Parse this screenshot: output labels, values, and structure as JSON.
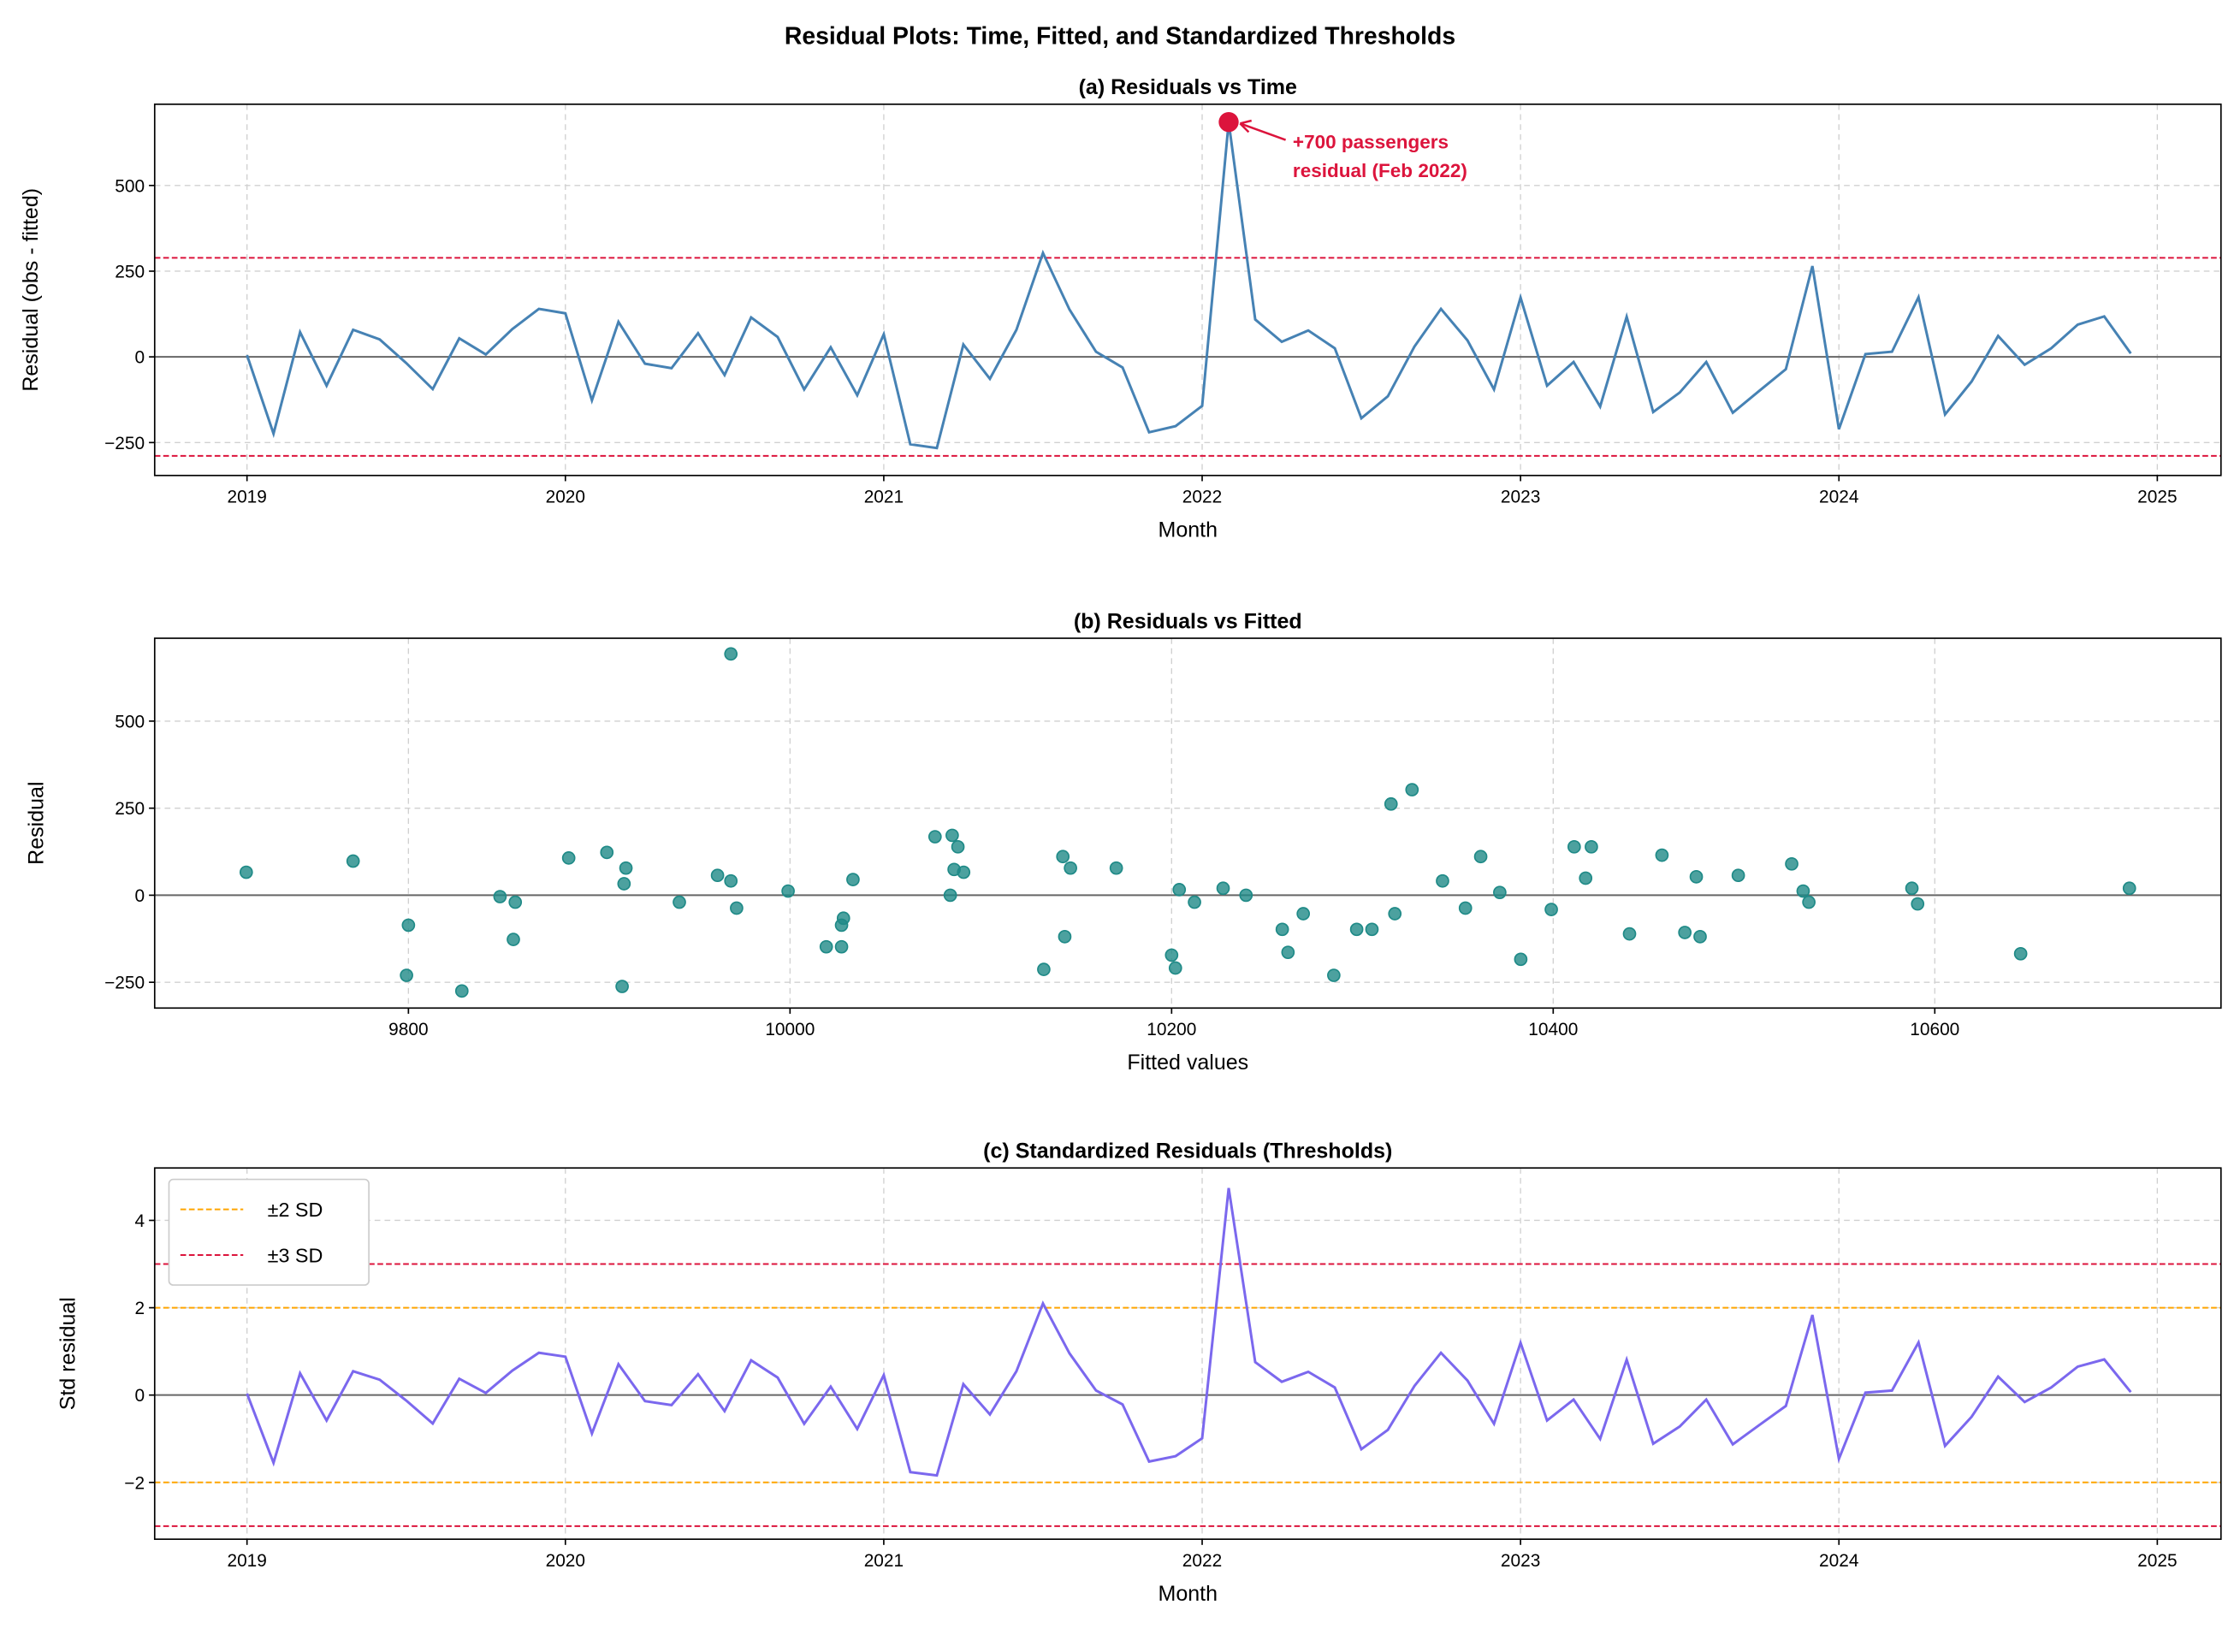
{
  "title": "Residual Plots: Time, Fitted, and Standardized Thresholds",
  "chart_data": [
    {
      "type": "line",
      "title": "(a) Residuals vs Time",
      "xlabel": "Month",
      "ylabel": "Residual (obs - fitted)",
      "x_start": "2019-01",
      "x_frequency": "monthly",
      "xlim": [
        2018.71,
        2025.2
      ],
      "ylim": [
        -346,
        737
      ],
      "xticks": [
        2019,
        2020,
        2021,
        2022,
        2023,
        2024,
        2025
      ],
      "yticks": [
        -250,
        0,
        250,
        500
      ],
      "grid": true,
      "color": "#4682b4",
      "values": [
        5,
        -224,
        72,
        -84,
        79,
        51,
        -18,
        -94,
        54,
        7,
        81,
        140,
        127,
        -127,
        102,
        -20,
        -33,
        69,
        -53,
        115,
        58,
        -95,
        28,
        -112,
        66,
        -255,
        -266,
        36,
        -64,
        79,
        303,
        138,
        15,
        -31,
        -220,
        -202,
        -143,
        685,
        109,
        44,
        77,
        25,
        -179,
        -115,
        30,
        140,
        48,
        -95,
        173,
        -84,
        -15,
        -145,
        117,
        -161,
        -104,
        -15,
        -163,
        -99,
        -36,
        265,
        -211,
        8,
        15,
        174,
        -168,
        -72,
        61,
        -23,
        25,
        94,
        118,
        10
      ],
      "threshold_lines": {
        "values": [
          289,
          -289
        ],
        "color": "#dc143c"
      },
      "annotation": {
        "text_line1": "+700 passengers",
        "text_line2": "residual (Feb 2022)",
        "month_index": 37,
        "color": "#dc143c"
      }
    },
    {
      "type": "scatter",
      "title": "(b) Residuals vs Fitted",
      "xlabel": "Fitted values",
      "ylabel": "Residual",
      "xlim": [
        9667,
        10750
      ],
      "ylim": [
        -324,
        738
      ],
      "xticks": [
        9800,
        10000,
        10200,
        10400,
        10600
      ],
      "yticks": [
        -250,
        0,
        250,
        500
      ],
      "grid": true,
      "color": "#1f8a87",
      "points": [
        [
          9715,
          66
        ],
        [
          9771,
          98
        ],
        [
          9800,
          -86
        ],
        [
          9799,
          -230
        ],
        [
          9828,
          -275
        ],
        [
          9848,
          -4
        ],
        [
          9856,
          -20
        ],
        [
          9855,
          -127
        ],
        [
          9884,
          107
        ],
        [
          9904,
          123
        ],
        [
          9914,
          78
        ],
        [
          9913,
          33
        ],
        [
          9912,
          -262
        ],
        [
          9942,
          -20
        ],
        [
          9962,
          57
        ],
        [
          9969,
          41
        ],
        [
          9969,
          693
        ],
        [
          9972,
          -37
        ],
        [
          9999,
          12
        ],
        [
          10019,
          -148
        ],
        [
          10027,
          -86
        ],
        [
          10028,
          -66
        ],
        [
          10027,
          -148
        ],
        [
          10033,
          45
        ],
        [
          10076,
          168
        ],
        [
          10085,
          172
        ],
        [
          10088,
          139
        ],
        [
          10086,
          74
        ],
        [
          10091,
          66
        ],
        [
          10084,
          0
        ],
        [
          10133,
          -213
        ],
        [
          10143,
          111
        ],
        [
          10147,
          78
        ],
        [
          10144,
          -119
        ],
        [
          10171,
          78
        ],
        [
          10200,
          -172
        ],
        [
          10202,
          -209
        ],
        [
          10204,
          16
        ],
        [
          10212,
          -20
        ],
        [
          10227,
          20
        ],
        [
          10239,
          0
        ],
        [
          10258,
          -98
        ],
        [
          10261,
          -164
        ],
        [
          10269,
          -53
        ],
        [
          10285,
          -230
        ],
        [
          10297,
          -98
        ],
        [
          10305,
          -98
        ],
        [
          10315,
          262
        ],
        [
          10326,
          303
        ],
        [
          10317,
          -53
        ],
        [
          10342,
          41
        ],
        [
          10354,
          -37
        ],
        [
          10362,
          111
        ],
        [
          10372,
          8
        ],
        [
          10383,
          -184
        ],
        [
          10399,
          -41
        ],
        [
          10411,
          139
        ],
        [
          10420,
          139
        ],
        [
          10417,
          49
        ],
        [
          10440,
          -111
        ],
        [
          10457,
          115
        ],
        [
          10469,
          -107
        ],
        [
          10475,
          53
        ],
        [
          10477,
          -119
        ],
        [
          10497,
          57
        ],
        [
          10525,
          90
        ],
        [
          10531,
          12
        ],
        [
          10534,
          -20
        ],
        [
          10588,
          20
        ],
        [
          10591,
          -25
        ],
        [
          10645,
          -168
        ],
        [
          10702,
          20
        ]
      ]
    },
    {
      "type": "line",
      "title": "(c) Standardized Residuals (Thresholds)",
      "xlabel": "Month",
      "ylabel": "Std residual",
      "derived_from": "panel (a) residuals divided by sd",
      "sd": 144.5,
      "xlim": [
        2018.71,
        2025.2
      ],
      "ylim": [
        -3.3,
        5.2
      ],
      "xticks": [
        2019,
        2020,
        2021,
        2022,
        2023,
        2024,
        2025
      ],
      "yticks": [
        -2,
        0,
        2,
        4
      ],
      "grid": true,
      "color": "#7b68ee",
      "thresholds": [
        {
          "label": "±2 SD",
          "values": [
            2,
            -2
          ],
          "color": "#ffa500"
        },
        {
          "label": "±3 SD",
          "values": [
            3,
            -3
          ],
          "color": "#dc143c"
        }
      ],
      "legend": "top-left"
    }
  ]
}
